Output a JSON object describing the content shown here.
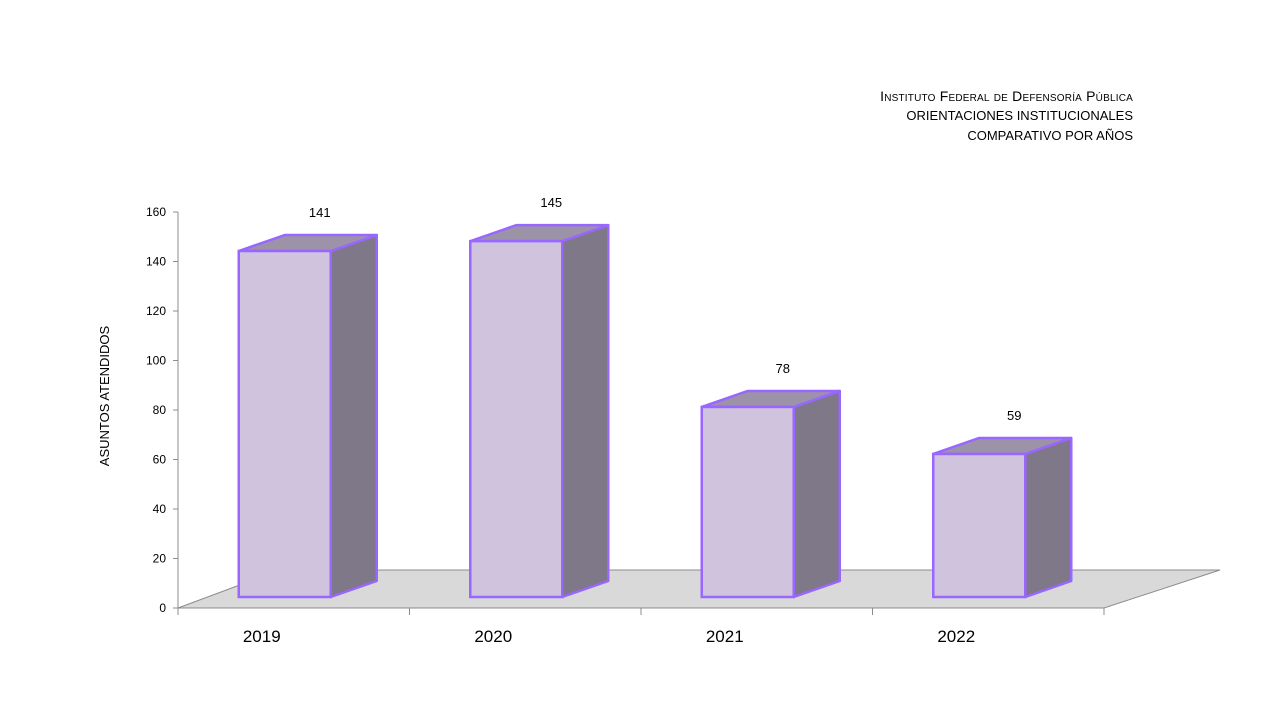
{
  "title": "Instituto Federal de Defensoría Pública",
  "subtitle_1": "ORIENTACIONES INSTITUCIONALES",
  "subtitle_2": "COMPARATIVO POR AÑOS",
  "colors": {
    "bar_front": "#cfc3de",
    "bar_side": "#7e7889",
    "bar_top": "#9d93a8",
    "bar_edge": "#9966ff",
    "floor": "#d9d9d9",
    "floor_edge": "#8c8c8c",
    "axis": "#8c8c8c"
  },
  "chart_data": {
    "type": "bar",
    "style": "3d-column",
    "categories": [
      "2019",
      "2020",
      "2021",
      "2022"
    ],
    "values": [
      141,
      145,
      78,
      59
    ],
    "data_labels": [
      "141",
      "145",
      "78",
      "59"
    ],
    "ylabel": "ASUNTOS ATENDIDOS",
    "xlabel": "",
    "ylim": [
      0,
      160
    ],
    "yticks": [
      "0",
      "20",
      "40",
      "60",
      "80",
      "100",
      "120",
      "140",
      "160"
    ],
    "grid": false,
    "legend": "none"
  }
}
